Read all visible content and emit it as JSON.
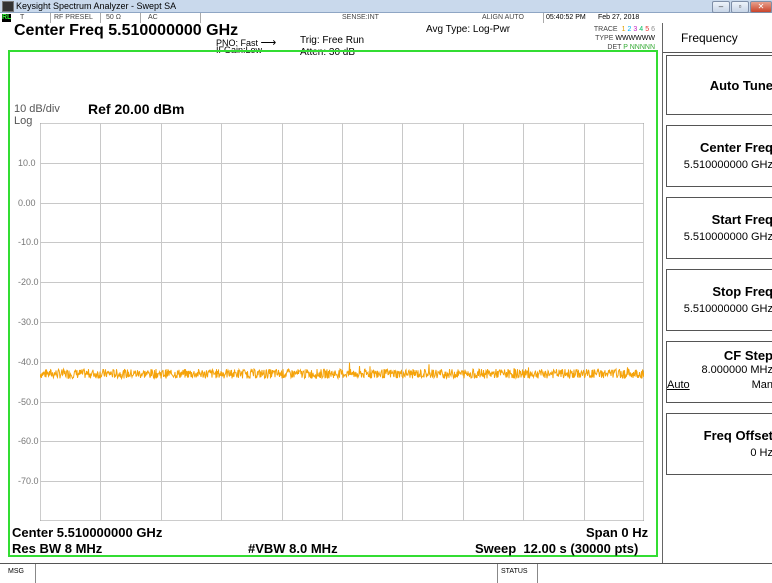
{
  "window": {
    "title": "Keysight Spectrum Analyzer - Swept SA",
    "buttons": {
      "minimize": "–",
      "maximize": "▫",
      "close": "✕"
    }
  },
  "status_row": {
    "indicator": "RL",
    "mode": "T",
    "preamp": "RF PRESEL",
    "impedance": "50 Ω",
    "coupling": "AC",
    "sense": "SENSE:INT",
    "align": "ALIGN AUTO",
    "time": "05:40:52 PM",
    "date": "Feb 27, 2018"
  },
  "header": {
    "center_freq": "Center Freq 5.510000000 GHz",
    "pno": "PNO: Fast",
    "ifgain": "IFGain:Low",
    "trig": "Trig: Free Run",
    "atten": "Atten: 30 dB",
    "avg_type": "Avg Type: Log-Pwr",
    "trace_label": "TRACE",
    "trace_nums": [
      "1",
      "2",
      "3",
      "4",
      "5",
      "6"
    ],
    "trace_colors": [
      "#e0a000",
      "#00b0f0",
      "#c020c0",
      "#00c060",
      "#e03030",
      "#909090"
    ],
    "type_label": "TYPE",
    "type_value": "WWWWWW",
    "det_label": "DET",
    "det_value": "P NNNNN"
  },
  "plot": {
    "scale": "10 dB/div",
    "ref_level": "Ref 20.00 dBm",
    "log": "Log",
    "y_ticks": [
      "10.0",
      "0.00",
      "-10.0",
      "-20.0",
      "-30.0",
      "-40.0",
      "-50.0",
      "-60.0",
      "-70.0"
    ],
    "y_max_dbm": 20,
    "y_min_dbm": -80,
    "trace_level_dbm": -43,
    "trace_noise_dbm": 1.2,
    "trace_color": "#f5a30a"
  },
  "footer": {
    "center": "Center 5.510000000 GHz",
    "span": "Span 0 Hz",
    "rbw": "Res BW 8 MHz",
    "vbw": "#VBW 8.0 MHz",
    "sweep": "Sweep  12.00 s (30000 pts)"
  },
  "softkeys": {
    "menu_title": "Frequency",
    "keys": [
      {
        "label": "Auto Tune",
        "value": ""
      },
      {
        "label": "Center Freq",
        "value": "5.510000000 GHz"
      },
      {
        "label": "Start Freq",
        "value": "5.510000000 GHz"
      },
      {
        "label": "Stop Freq",
        "value": "5.510000000 GHz"
      },
      {
        "label": "CF Step",
        "value": "8.000000 MHz"
      },
      {
        "label": "Freq Offset",
        "value": "0 Hz"
      }
    ],
    "cfstep_auto": "Auto",
    "cfstep_man": "Man"
  },
  "message_bar": {
    "msg": "MSG",
    "status": "STATUS"
  }
}
